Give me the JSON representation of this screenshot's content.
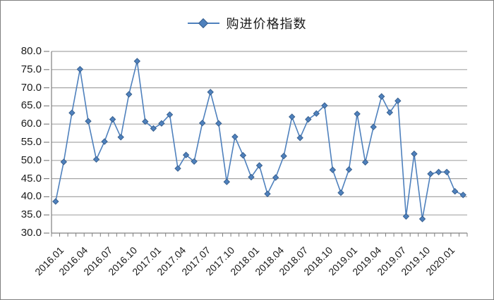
{
  "chart_data": {
    "type": "line",
    "legend_position": "top-center",
    "grid": true,
    "ylim": [
      30,
      80
    ],
    "ytick_step": 5,
    "ytick_decimals": 1,
    "x": [
      "2016.01",
      "2016.02",
      "2016.03",
      "2016.04",
      "2016.05",
      "2016.06",
      "2016.07",
      "2016.08",
      "2016.09",
      "2016.10",
      "2016.11",
      "2016.12",
      "2017.01",
      "2017.02",
      "2017.03",
      "2017.04",
      "2017.05",
      "2017.06",
      "2017.07",
      "2017.08",
      "2017.09",
      "2017.10",
      "2017.11",
      "2017.12",
      "2018.01",
      "2018.02",
      "2018.03",
      "2018.04",
      "2018.05",
      "2018.06",
      "2018.07",
      "2018.08",
      "2018.09",
      "2018.10",
      "2018.11",
      "2018.12",
      "2019.01",
      "2019.02",
      "2019.03",
      "2019.04",
      "2019.05",
      "2019.06",
      "2019.07",
      "2019.08",
      "2019.09",
      "2019.10",
      "2019.11",
      "2019.12",
      "2020.01",
      "2020.02",
      "2020.03"
    ],
    "x_tick_labels": [
      "2016.01",
      "2016.04",
      "2016.07",
      "2016.10",
      "2017.01",
      "2017.04",
      "2017.07",
      "2017.10",
      "2018.01",
      "2018.04",
      "2018.07",
      "2018.10",
      "2019.01",
      "2019.04",
      "2019.07",
      "2019.10",
      "2020.01"
    ],
    "x_tick_label_every": 3,
    "series": [
      {
        "name": "购进价格指数",
        "values": [
          38.7,
          49.6,
          63.1,
          75.1,
          60.8,
          50.3,
          55.2,
          61.3,
          56.4,
          68.2,
          77.3,
          60.7,
          58.8,
          60.2,
          62.6,
          47.8,
          51.5,
          49.7,
          60.3,
          68.8,
          60.2,
          44.1,
          56.5,
          51.4,
          45.4,
          48.6,
          40.8,
          45.3,
          51.2,
          62.0,
          56.2,
          61.3,
          62.9,
          65.1,
          47.4,
          41.1,
          47.5,
          62.8,
          49.5,
          59.2,
          67.6,
          63.2,
          66.4,
          34.6,
          51.8,
          33.9,
          46.3,
          46.8,
          46.8,
          41.5,
          40.5
        ]
      }
    ],
    "colors": {
      "line": "#4f81bd",
      "marker_border": "#38608f",
      "grid": "#a6a6a6",
      "axis": "#808080",
      "text": "#1a1a1a"
    }
  }
}
